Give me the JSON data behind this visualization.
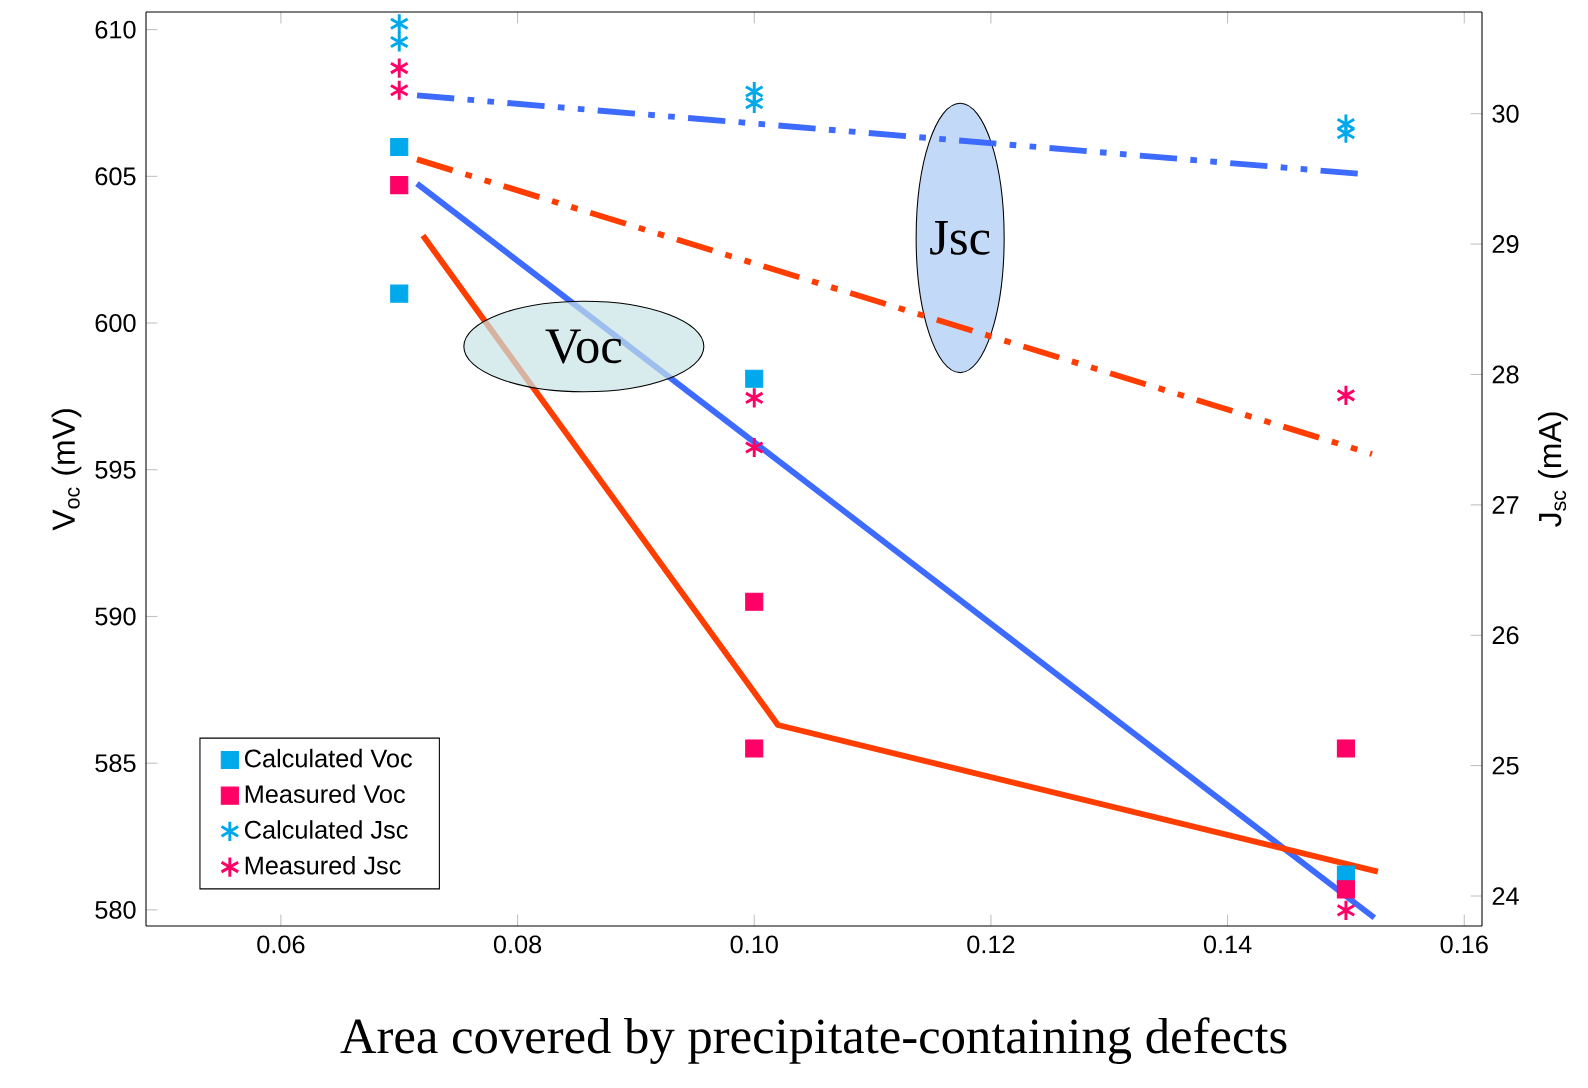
{
  "chart_data": {
    "type": "scatter",
    "xlabel": "Area covered by precipitate-containing defects",
    "ylabel": "V$_{oc}$ (mV)",
    "y2label": "J$_{sc}$ (mA)",
    "xlim": [
      0.0486,
      0.1615
    ],
    "xticks": [
      0.06,
      0.08,
      {
        "value": 0.1,
        "label": "0.10"
      },
      0.12,
      0.14,
      0.16
    ],
    "ylim": [
      579.45,
      610.6
    ],
    "yticks": [
      580,
      585,
      590,
      595,
      600,
      605,
      610
    ],
    "y2lim": [
      23.77,
      30.78
    ],
    "y2ticks": [
      24,
      25,
      26,
      27,
      28,
      29,
      30
    ],
    "legend": "bottom left",
    "annotations": [
      "Voc",
      "Jsc"
    ],
    "series": [
      {
        "name": "Calculated Voc",
        "color": "#00a8ec",
        "marker": "square",
        "x": [
          0.07,
          0.07,
          0.1,
          0.15
        ],
        "values": [
          606.0,
          601.0,
          598.1,
          581.2
        ]
      },
      {
        "name": "Measured Voc",
        "color": "#ff0066",
        "marker": "square",
        "x": [
          0.07,
          0.1,
          0.1,
          0.15,
          0.15
        ],
        "values": [
          604.7,
          590.5,
          585.5,
          585.5,
          580.7
        ]
      },
      {
        "name": "Calculated Jsc",
        "color": "#00a8ec",
        "marker": "cross",
        "axis": "y2",
        "x": [
          0.07,
          0.07,
          0.1,
          0.1,
          0.15,
          0.15
        ],
        "values": [
          30.69,
          30.55,
          30.17,
          30.08,
          29.92,
          29.85
        ]
      },
      {
        "name": "Measured Jsc",
        "color": "#ff0066",
        "marker": "cross",
        "axis": "y2",
        "x": [
          0.07,
          0.07,
          0.1,
          0.1,
          0.15,
          0.15
        ],
        "values": [
          30.35,
          30.18,
          27.82,
          27.44,
          27.84,
          23.89
        ]
      },
      {
        "type": "line",
        "color": "#3d6aff",
        "line_style": "solid",
        "marker": "none",
        "x": [
          0.0715,
          0.1524
        ],
        "values": [
          604.75,
          579.73
        ]
      },
      {
        "type": "line",
        "color": "#ff3d00",
        "line_style": "solid",
        "marker": "none",
        "x": [
          0.072,
          0.102,
          0.1527
        ],
        "values": [
          602.98,
          586.3,
          581.3
        ]
      },
      {
        "type": "line",
        "color": "#3d6aff",
        "line_style": "dashed",
        "marker": "none",
        "axis": "y2",
        "x": [
          0.0715,
          0.151
        ],
        "values": [
          30.14,
          29.54
        ]
      },
      {
        "type": "line",
        "color": "#ff3d00",
        "line_style": "dashed",
        "marker": "none",
        "axis": "y2",
        "x": [
          0.0715,
          0.1522
        ],
        "values": [
          29.65,
          27.39
        ]
      }
    ]
  }
}
